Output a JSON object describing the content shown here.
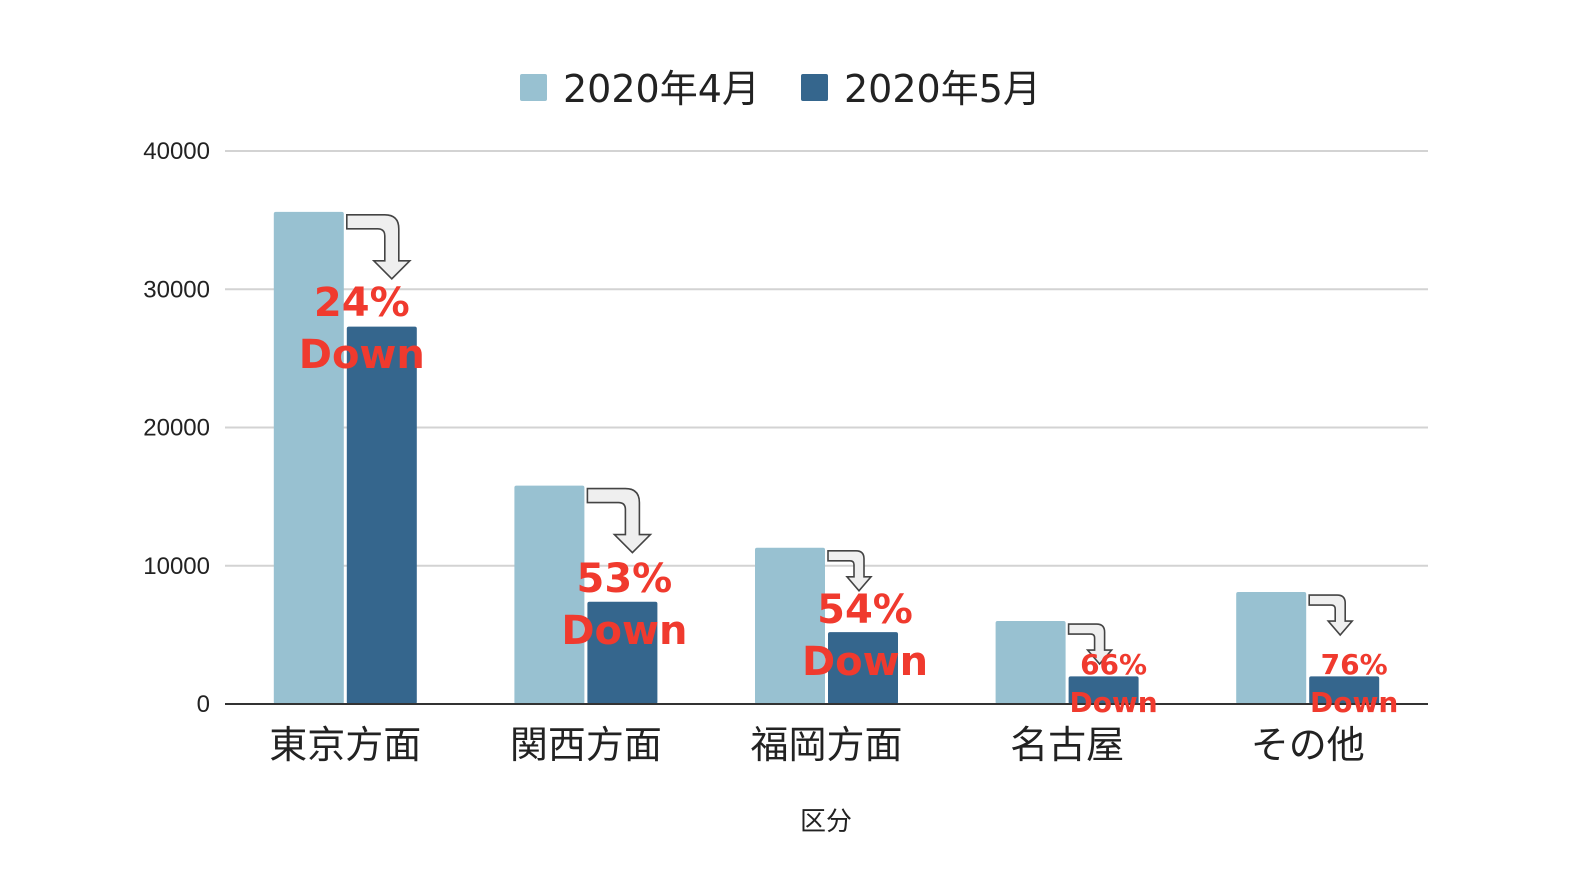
{
  "chart_data": {
    "type": "bar",
    "title": "",
    "xlabel": "区分",
    "ylabel": "",
    "ylim": [
      0,
      40000
    ],
    "yticks": [
      0,
      10000,
      20000,
      30000,
      40000
    ],
    "grid": true,
    "legend_position": "top",
    "categories": [
      "東京方面",
      "関西方面",
      "福岡方面",
      "名古屋",
      "その他"
    ],
    "series": [
      {
        "name": "2020年4月",
        "color": "#98c1d1",
        "values": [
          35600,
          15800,
          11300,
          6000,
          8100
        ]
      },
      {
        "name": "2020年5月",
        "color": "#35668d",
        "values": [
          27300,
          7400,
          5200,
          2000,
          2000
        ]
      }
    ],
    "annotations": [
      {
        "category": "東京方面",
        "percent": "24%",
        "label": "Down"
      },
      {
        "category": "関西方面",
        "percent": "53%",
        "label": "Down"
      },
      {
        "category": "福岡方面",
        "percent": "54%",
        "label": "Down"
      },
      {
        "category": "名古屋",
        "percent": "66%",
        "label": "Down"
      },
      {
        "category": "その他",
        "percent": "76%",
        "label": "Down"
      }
    ]
  }
}
